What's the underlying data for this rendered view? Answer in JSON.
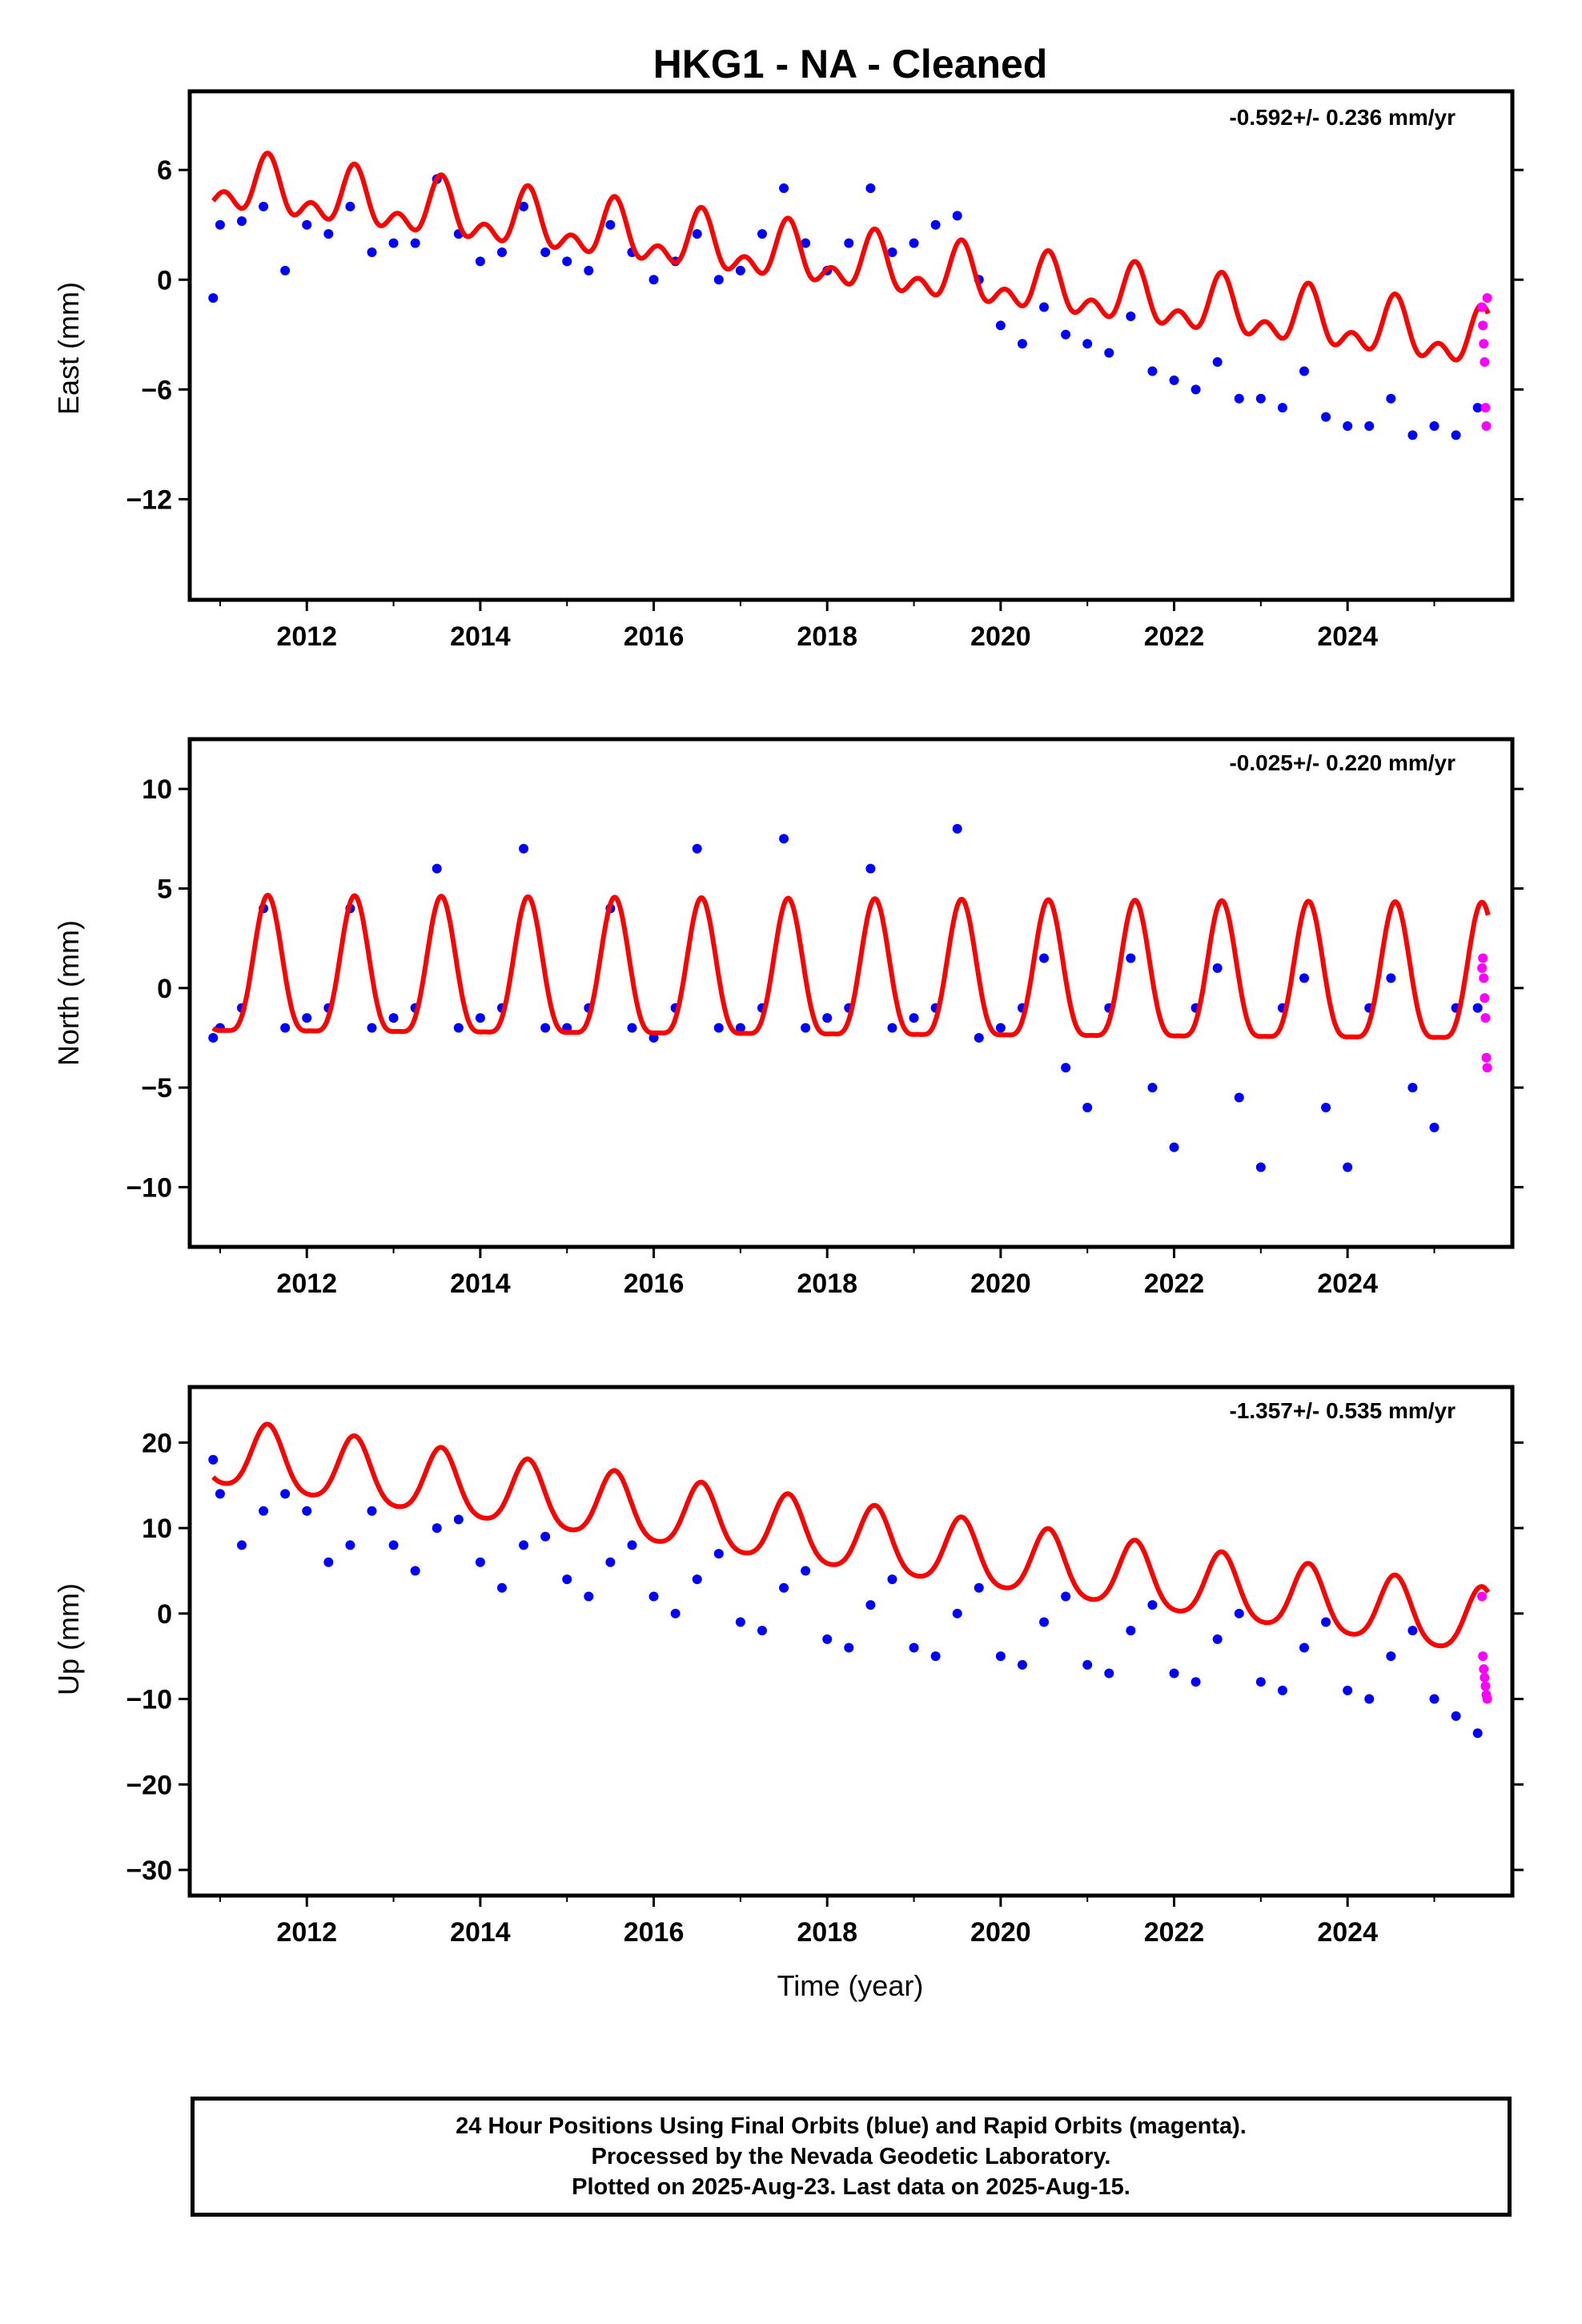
{
  "chart_title": "HKG1  - NA - Cleaned",
  "caption": [
    "24 Hour Positions Using Final Orbits (blue) and Rapid Orbits (magenta).",
    "Processed by the Nevada Geodetic Laboratory.",
    "Plotted on 2025-Aug-23. Last data on 2025-Aug-15."
  ],
  "colors": {
    "final": "#0000ff",
    "rapid": "#ff00ff",
    "model": "#ff0000",
    "frame": "#000000"
  },
  "chart_data": [
    {
      "type": "scatter",
      "ylabel": "East (mm)",
      "rate_text": "-0.592+/- 0.236 mm/yr",
      "xlim": [
        2010.65,
        2025.9
      ],
      "ylim": [
        -17.5,
        10.3
      ],
      "xticks": [
        2012,
        2014,
        2016,
        2018,
        2020,
        2022,
        2024
      ],
      "yticks": [
        -12,
        -6,
        0,
        6
      ],
      "xtick_labels": [
        "2012",
        "2014",
        "2016",
        "2018",
        "2020",
        "2022",
        "2024"
      ],
      "ytick_labels": [
        "−12",
        "−6",
        "0",
        "6"
      ],
      "series": [
        {
          "x": [
            2010.92,
            2011.0,
            2011.25,
            2011.5,
            2011.75,
            2012.0,
            2012.25,
            2012.5,
            2012.75,
            2013.0,
            2013.25,
            2013.5,
            2013.75,
            2014.0,
            2014.25,
            2014.5,
            2014.75,
            2015.0,
            2015.25,
            2015.5,
            2015.75,
            2016.0,
            2016.25,
            2016.5,
            2016.75,
            2017.0,
            2017.25,
            2017.5,
            2017.75,
            2018.0,
            2018.25,
            2018.5,
            2018.75,
            2019.0,
            2019.25,
            2019.5,
            2019.75,
            2020.0,
            2020.25,
            2020.5,
            2020.75,
            2021.0,
            2021.25,
            2021.5,
            2021.75,
            2022.0,
            2022.25,
            2022.5,
            2022.75,
            2023.0,
            2023.25,
            2023.5,
            2023.75,
            2024.0,
            2024.25,
            2024.5,
            2024.75,
            2025.0,
            2025.25,
            2025.5
          ],
          "y": [
            -1.0,
            3.0,
            3.2,
            4.0,
            0.5,
            3.0,
            2.5,
            4.0,
            1.5,
            2.0,
            2.0,
            5.5,
            2.5,
            1.0,
            1.5,
            4.0,
            1.5,
            1.0,
            0.5,
            3.0,
            1.5,
            0.0,
            1.0,
            2.5,
            0.0,
            0.5,
            2.5,
            5.0,
            2.0,
            0.5,
            2.0,
            5.0,
            1.5,
            2.0,
            3.0,
            3.5,
            0.0,
            -2.5,
            -3.5,
            -1.5,
            -3.0,
            -3.5,
            -4.0,
            -2.0,
            -5.0,
            -5.5,
            -6.0,
            -4.5,
            -6.5,
            -6.5,
            -7.0,
            -5.0,
            -7.5,
            -8.0,
            -8.0,
            -6.5,
            -8.5,
            -8.0,
            -8.5,
            -7.0
          ]
        }
      ],
      "model": {
        "offset": 1.0,
        "rate": -0.592,
        "annual_amplitude": 1.2,
        "semiannual_amplitude": 0.9
      },
      "rapid": {
        "x": [
          2025.55,
          2025.56,
          2025.57,
          2025.58,
          2025.59,
          2025.6,
          2025.61
        ],
        "y": [
          -1.5,
          -2.5,
          -3.5,
          -4.5,
          -7.0,
          -8.0,
          -1.0
        ]
      }
    },
    {
      "type": "scatter",
      "ylabel": "North (mm)",
      "rate_text": "-0.025+/- 0.220 mm/yr",
      "xlim": [
        2010.65,
        2025.9
      ],
      "ylim": [
        -13.0,
        12.5
      ],
      "xticks": [
        2012,
        2014,
        2016,
        2018,
        2020,
        2022,
        2024
      ],
      "yticks": [
        -10,
        -5,
        0,
        5,
        10
      ],
      "xtick_labels": [
        "2012",
        "2014",
        "2016",
        "2018",
        "2020",
        "2022",
        "2024"
      ],
      "ytick_labels": [
        "−10",
        "−5",
        "0",
        "5",
        "10"
      ],
      "series": [
        {
          "x": [
            2010.92,
            2011.0,
            2011.25,
            2011.5,
            2011.75,
            2012.0,
            2012.25,
            2012.5,
            2012.75,
            2013.0,
            2013.25,
            2013.5,
            2013.75,
            2014.0,
            2014.25,
            2014.5,
            2014.75,
            2015.0,
            2015.25,
            2015.5,
            2015.75,
            2016.0,
            2016.25,
            2016.5,
            2016.75,
            2017.0,
            2017.25,
            2017.5,
            2017.75,
            2018.0,
            2018.25,
            2018.5,
            2018.75,
            2019.0,
            2019.25,
            2019.5,
            2019.75,
            2020.0,
            2020.25,
            2020.5,
            2020.75,
            2021.0,
            2021.25,
            2021.5,
            2021.75,
            2022.0,
            2022.25,
            2022.5,
            2022.75,
            2023.0,
            2023.25,
            2023.5,
            2023.75,
            2024.0,
            2024.25,
            2024.5,
            2024.75,
            2025.0,
            2025.25,
            2025.5
          ],
          "y": [
            -2.5,
            -2.0,
            -1.0,
            4.0,
            -2.0,
            -1.5,
            -1.0,
            4.0,
            -2.0,
            -1.5,
            -1.0,
            6.0,
            -2.0,
            -1.5,
            -1.0,
            7.0,
            -2.0,
            -2.0,
            -1.0,
            4.0,
            -2.0,
            -2.5,
            -1.0,
            7.0,
            -2.0,
            -2.0,
            -1.0,
            7.5,
            -2.0,
            -1.5,
            -1.0,
            6.0,
            -2.0,
            -1.5,
            -1.0,
            8.0,
            -2.5,
            -2.0,
            -1.0,
            1.5,
            -4.0,
            -6.0,
            -1.0,
            1.5,
            -5.0,
            -8.0,
            -1.0,
            1.0,
            -5.5,
            -9.0,
            -1.0,
            0.5,
            -6.0,
            -9.0,
            -1.0,
            0.5,
            -5.0,
            -7.0,
            -1.0,
            -1.0
          ]
        }
      ],
      "model": {
        "offset": 0.2,
        "rate": -0.025,
        "annual_amplitude": 3.4,
        "semiannual_amplitude": 0.9
      },
      "rapid": {
        "x": [
          2025.55,
          2025.56,
          2025.57,
          2025.58,
          2025.59,
          2025.6,
          2025.61
        ],
        "y": [
          1.0,
          1.5,
          0.5,
          -0.5,
          -1.5,
          -3.5,
          -4.0
        ]
      }
    },
    {
      "type": "scatter",
      "xlabel": "Time (year)",
      "ylabel": "Up (mm)",
      "rate_text": "-1.357+/- 0.535 mm/yr",
      "xlim": [
        2010.65,
        2025.9
      ],
      "ylim": [
        -33.0,
        26.5
      ],
      "xticks": [
        2012,
        2014,
        2016,
        2018,
        2020,
        2022,
        2024
      ],
      "yticks": [
        -30,
        -20,
        -10,
        0,
        10,
        20
      ],
      "xtick_labels": [
        "2012",
        "2014",
        "2016",
        "2018",
        "2020",
        "2022",
        "2024"
      ],
      "ytick_labels": [
        "−30",
        "−20",
        "−10",
        "0",
        "10",
        "20"
      ],
      "series": [
        {
          "x": [
            2010.92,
            2011.0,
            2011.25,
            2011.5,
            2011.75,
            2012.0,
            2012.25,
            2012.5,
            2012.75,
            2013.0,
            2013.25,
            2013.5,
            2013.75,
            2014.0,
            2014.25,
            2014.5,
            2014.75,
            2015.0,
            2015.25,
            2015.5,
            2015.75,
            2016.0,
            2016.25,
            2016.5,
            2016.75,
            2017.0,
            2017.25,
            2017.5,
            2017.75,
            2018.0,
            2018.25,
            2018.5,
            2018.75,
            2019.0,
            2019.25,
            2019.5,
            2019.75,
            2020.0,
            2020.25,
            2020.5,
            2020.75,
            2021.0,
            2021.25,
            2021.5,
            2021.75,
            2022.0,
            2022.25,
            2022.5,
            2022.75,
            2023.0,
            2023.25,
            2023.5,
            2023.75,
            2024.0,
            2024.25,
            2024.5,
            2024.75,
            2025.0,
            2025.25,
            2025.5
          ],
          "y": [
            18.0,
            14.0,
            8.0,
            12.0,
            14.0,
            12.0,
            6.0,
            8.0,
            12.0,
            8.0,
            5.0,
            10.0,
            11.0,
            6.0,
            3.0,
            8.0,
            9.0,
            4.0,
            2.0,
            6.0,
            8.0,
            2.0,
            0.0,
            4.0,
            7.0,
            -1.0,
            -2.0,
            3.0,
            5.0,
            -3.0,
            -4.0,
            1.0,
            4.0,
            -4.0,
            -5.0,
            0.0,
            3.0,
            -5.0,
            -6.0,
            -1.0,
            2.0,
            -6.0,
            -7.0,
            -2.0,
            1.0,
            -7.0,
            -8.0,
            -3.0,
            0.0,
            -8.0,
            -9.0,
            -4.0,
            -1.0,
            -9.0,
            -10.0,
            -5.0,
            -2.0,
            -10.0,
            -12.0,
            -14.0
          ]
        }
      ],
      "model": {
        "offset": 9.0,
        "rate": -1.357,
        "annual_amplitude": 3.8,
        "semiannual_amplitude": 0.6
      },
      "rapid": {
        "x": [
          2025.55,
          2025.56,
          2025.57,
          2025.58,
          2025.59,
          2025.6,
          2025.61
        ],
        "y": [
          2.0,
          -5.0,
          -6.5,
          -7.5,
          -8.5,
          -9.5,
          -10.0
        ]
      }
    }
  ]
}
